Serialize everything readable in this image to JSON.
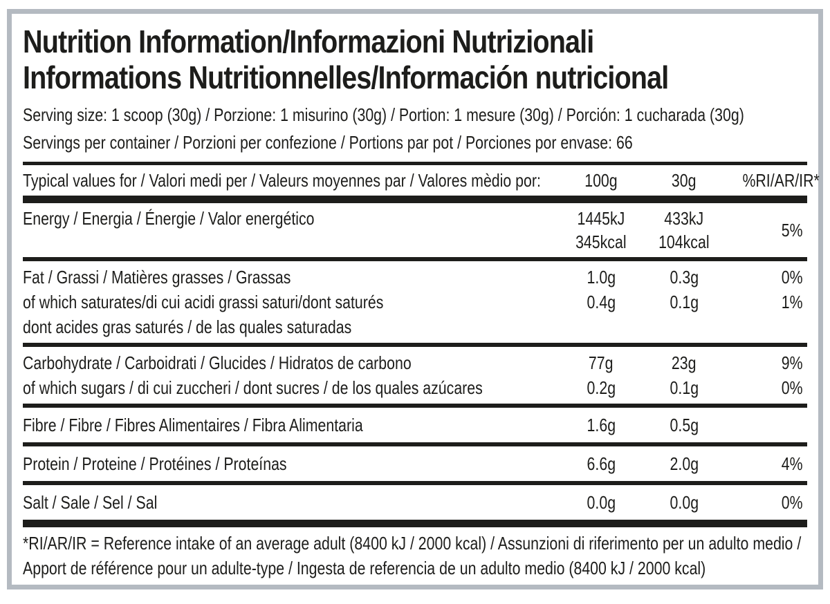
{
  "title": {
    "line1": "Nutrition Information/Informazioni Nutrizionali",
    "line2": "Informations Nutritionnelles/Información nutricional"
  },
  "serving_info": {
    "serving_size": "Serving size: 1 scoop (30g) / Porzione: 1 misurino (30g) / Portion: 1 mesure (30g) / Porción: 1 cucharada (30g)",
    "servings_per_container": "Servings per container / Porzioni per confezione / Portions par pot / Porciones por envase: 66"
  },
  "table": {
    "header": {
      "label": "Typical values for / Valori medi per / Valeurs moyennes par / Valores mèdio por:",
      "col_100g": "100g",
      "col_30g": "30g",
      "col_ri": "%RI/AR/IR*"
    },
    "rows": {
      "energy": {
        "label": "Energy / Energia / Énergie / Valor energético",
        "v100_kj": "1445kJ",
        "v100_kcal": "345kcal",
        "v30_kj": "433kJ",
        "v30_kcal": "104kcal",
        "ri": "5%"
      },
      "fat": {
        "label": "Fat / Grassi / Matières grasses / Grassas",
        "v100": "1.0g",
        "v30": "0.3g",
        "ri": "0%"
      },
      "saturates": {
        "label_line1": "of which saturates/di cui acidi grassi saturi/dont saturés",
        "label_line2": "dont acides gras saturés / de las quales saturadas",
        "v100": "0.4g",
        "v30": "0.1g",
        "ri": "1%"
      },
      "carbohydrate": {
        "label": "Carbohydrate / Carboidrati / Glucides / Hidratos de carbono",
        "v100": "77g",
        "v30": "23g",
        "ri": "9%"
      },
      "sugars": {
        "label": "of which sugars / di cui zuccheri / dont sucres / de los quales azúcares",
        "v100": "0.2g",
        "v30": "0.1g",
        "ri": "0%"
      },
      "fibre": {
        "label": "Fibre / Fibre / Fibres Alimentaires / Fibra Alimentaria",
        "v100": "1.6g",
        "v30": "0.5g",
        "ri": ""
      },
      "protein": {
        "label": "Protein / Proteine / Protéines / Proteínas",
        "v100": "6.6g",
        "v30": "2.0g",
        "ri": "4%"
      },
      "salt": {
        "label": "Salt / Sale / Sel / Sal",
        "v100": "0.0g",
        "v30": "0.0g",
        "ri": "0%"
      }
    }
  },
  "footnote": "*RI/AR/IR = Reference intake of an average adult (8400 kJ / 2000 kcal)  / Assunzioni di riferimento per un adulto medio / Apport de référence pour un adulte-type / Ingesta de referencia de un adulto medio (8400 kJ / 2000 kcal)",
  "colors": {
    "text": "#1d1d1b",
    "rule": "#1d1d1b",
    "border": "#b4bac1",
    "background": "#ffffff"
  }
}
